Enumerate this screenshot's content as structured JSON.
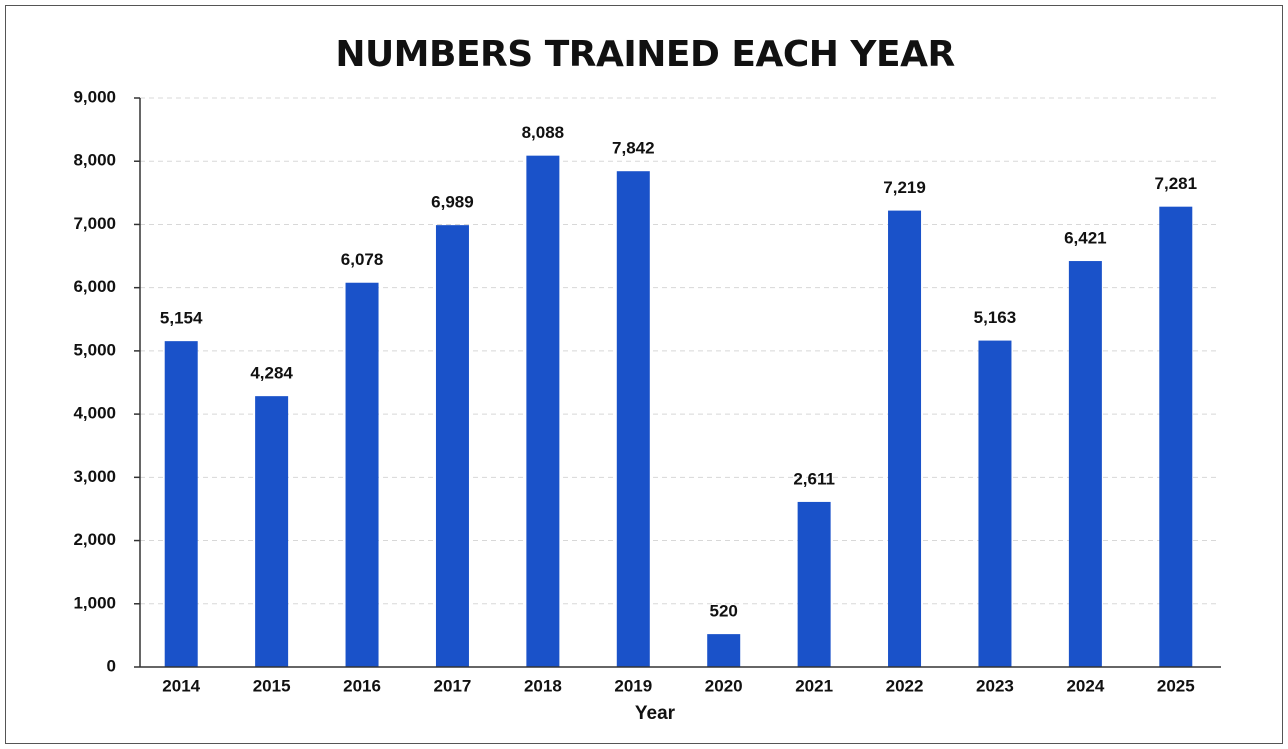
{
  "chart_data": {
    "type": "bar",
    "title": "NUMBERS TRAINED EACH YEAR",
    "x_label": "Year",
    "categories": [
      "2014",
      "2015",
      "2016",
      "2017",
      "2018",
      "2019",
      "2020",
      "2021",
      "2022",
      "2023",
      "2024",
      "2025"
    ],
    "values": [
      5154,
      4284,
      6078,
      6989,
      8088,
      7842,
      520,
      2611,
      7219,
      5163,
      6421,
      7281
    ],
    "value_labels": [
      "5,154",
      "4,284",
      "6,078",
      "6,989",
      "8,088",
      "7,842",
      "520",
      "2,611",
      "7,219",
      "5,163",
      "6,421",
      "7,281"
    ],
    "color": "#1a52c9",
    "ylim": [
      0,
      9000
    ],
    "yticks": [
      0,
      {
        "value": 1000,
        "label": "1,000"
      },
      {
        "value": 2000,
        "label": "2,000"
      },
      {
        "value": 3000,
        "label": "3,000"
      },
      {
        "value": 4000,
        "label": "4,000"
      },
      {
        "value": 5000,
        "label": "5,000"
      },
      {
        "value": 6000,
        "label": "6,000"
      },
      {
        "value": 7000,
        "label": "7,000"
      },
      {
        "value": 8000,
        "label": "8,000"
      },
      {
        "value": 9000,
        "label": "9,000"
      }
    ],
    "grid": true
  }
}
